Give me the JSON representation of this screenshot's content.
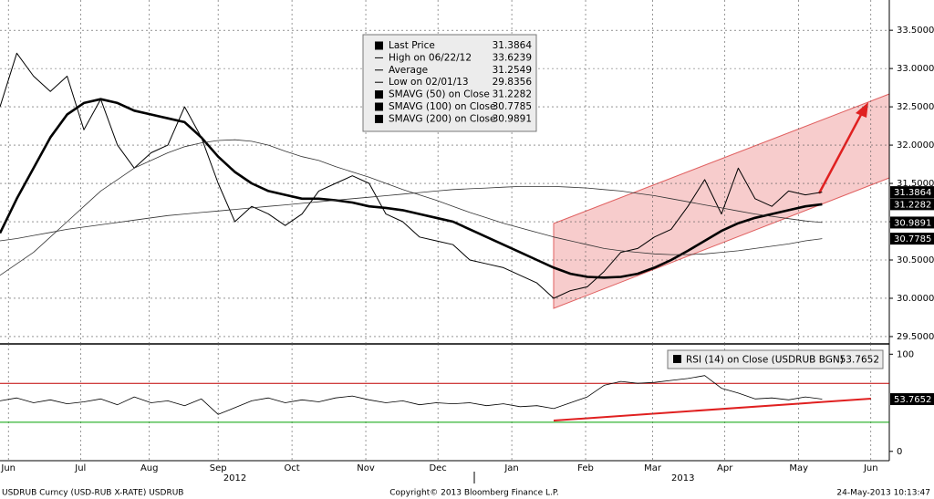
{
  "chart_data": [
    {
      "type": "line",
      "x": [
        0,
        1,
        2,
        3,
        4,
        5,
        6,
        7,
        8,
        9,
        10,
        11,
        12,
        13,
        14,
        15,
        16,
        17,
        18,
        19,
        20,
        21,
        22,
        23,
        24,
        25,
        26,
        27,
        28,
        29,
        30,
        31,
        32,
        33,
        34,
        35,
        36,
        37,
        38,
        39,
        40,
        41,
        42,
        43,
        44,
        45,
        46,
        47,
        48,
        49
      ],
      "xlim": [
        0,
        53
      ],
      "ylim": [
        29.404,
        33.895
      ],
      "yticks": [
        {
          "value": 29.5,
          "label": "29.5000"
        },
        {
          "value": 30,
          "label": "30.0000"
        },
        {
          "value": 30.5,
          "label": "30.5000"
        },
        {
          "value": 31,
          "label": "31.0000"
        },
        {
          "value": 31.5,
          "label": "31.5000"
        },
        {
          "value": 32,
          "label": "32.0000"
        },
        {
          "value": 32.5,
          "label": "32.5000"
        },
        {
          "value": 33,
          "label": "33.0000"
        },
        {
          "value": 33.5,
          "label": "33.5000"
        }
      ],
      "grid": true,
      "series": [
        {
          "name": "Last Price",
          "color": "#000000",
          "line_width": 1,
          "last_value": 31.3864,
          "values": [
            32.5,
            33.2,
            32.9,
            32.7,
            32.9,
            32.2,
            32.6,
            32.0,
            31.7,
            31.9,
            32.0,
            32.5,
            32.1,
            31.5,
            31.0,
            31.2,
            31.1,
            30.95,
            31.1,
            31.4,
            31.5,
            31.6,
            31.5,
            31.1,
            31.0,
            30.8,
            30.75,
            30.7,
            30.5,
            30.45,
            30.4,
            30.3,
            30.2,
            30.0,
            30.1,
            30.15,
            30.35,
            30.6,
            30.65,
            30.8,
            30.9,
            31.2,
            31.55,
            31.1,
            31.7,
            31.3,
            31.2,
            31.4,
            31.35,
            31.3864
          ]
        },
        {
          "name": "SMAVG (50) on Close",
          "color": "#000000",
          "line_width": 2.6,
          "last_value": 31.2282,
          "values": [
            30.85,
            31.3,
            31.7,
            32.1,
            32.4,
            32.55,
            32.6,
            32.55,
            32.45,
            32.4,
            32.35,
            32.3,
            32.1,
            31.85,
            31.65,
            31.5,
            31.4,
            31.35,
            31.3,
            31.3,
            31.28,
            31.25,
            31.2,
            31.18,
            31.15,
            31.1,
            31.05,
            31.0,
            30.9,
            30.8,
            30.7,
            30.6,
            30.5,
            30.4,
            30.32,
            30.28,
            30.27,
            30.28,
            30.32,
            30.4,
            30.5,
            30.62,
            30.75,
            30.88,
            30.98,
            31.05,
            31.1,
            31.15,
            31.2,
            31.2282
          ]
        },
        {
          "name": "SMAVG (100) on Close",
          "color": "#333333",
          "line_width": 0.8,
          "last_value": 30.7785,
          "values": [
            30.3,
            30.45,
            30.6,
            30.8,
            31.0,
            31.2,
            31.4,
            31.55,
            31.7,
            31.8,
            31.9,
            31.98,
            32.03,
            32.06,
            32.07,
            32.05,
            32.0,
            31.92,
            31.85,
            31.8,
            31.72,
            31.65,
            31.58,
            31.5,
            31.42,
            31.35,
            31.28,
            31.2,
            31.12,
            31.05,
            30.98,
            30.92,
            30.86,
            30.8,
            30.75,
            30.7,
            30.65,
            30.62,
            30.6,
            30.58,
            30.57,
            30.57,
            30.58,
            30.6,
            30.62,
            30.65,
            30.68,
            30.71,
            30.75,
            30.7785
          ]
        },
        {
          "name": "SMAVG (200) on Close",
          "color": "#333333",
          "line_width": 0.8,
          "last_value": 30.9891,
          "values": [
            30.75,
            30.78,
            30.82,
            30.86,
            30.9,
            30.93,
            30.96,
            30.99,
            31.02,
            31.05,
            31.08,
            31.1,
            31.12,
            31.14,
            31.16,
            31.18,
            31.2,
            31.22,
            31.24,
            31.26,
            31.28,
            31.3,
            31.32,
            31.34,
            31.36,
            31.38,
            31.4,
            31.42,
            31.43,
            31.44,
            31.45,
            31.46,
            31.46,
            31.46,
            31.45,
            31.44,
            31.42,
            31.4,
            31.37,
            31.34,
            31.3,
            31.26,
            31.22,
            31.18,
            31.14,
            31.1,
            31.07,
            31.04,
            31.01,
            30.9891
          ]
        }
      ],
      "legend_extra": [
        {
          "label": "High on 06/22/12",
          "value": 33.6239
        },
        {
          "label": "Average",
          "value": 31.2549
        },
        {
          "label": "Low on 02/01/13",
          "value": 29.8356
        }
      ]
    },
    {
      "type": "line",
      "x": [
        0,
        1,
        2,
        3,
        4,
        5,
        6,
        7,
        8,
        9,
        10,
        11,
        12,
        13,
        14,
        15,
        16,
        17,
        18,
        19,
        20,
        21,
        22,
        23,
        24,
        25,
        26,
        27,
        28,
        29,
        30,
        31,
        32,
        33,
        34,
        35,
        36,
        37,
        38,
        39,
        40,
        41,
        42,
        43,
        44,
        45,
        46,
        47,
        48,
        49
      ],
      "xlim": [
        0,
        53
      ],
      "ylim": [
        -9.6,
        110.6
      ],
      "yticks": [
        0,
        100
      ],
      "xticks": [
        {
          "value": 0.5,
          "label": "Jun"
        },
        {
          "value": 4.8,
          "label": "Jul"
        },
        {
          "value": 8.9,
          "label": "Aug"
        },
        {
          "value": 13.0,
          "label": "Sep"
        },
        {
          "value": 17.4,
          "label": "Oct"
        },
        {
          "value": 21.8,
          "label": "Nov"
        },
        {
          "value": 26.1,
          "label": "Dec"
        },
        {
          "value": 30.5,
          "label": "Jan"
        },
        {
          "value": 34.9,
          "label": "Feb"
        },
        {
          "value": 38.9,
          "label": "Mar"
        },
        {
          "value": 43.2,
          "label": "Apr"
        },
        {
          "value": 47.6,
          "label": "May"
        },
        {
          "value": 51.9,
          "label": "Jun"
        }
      ],
      "x_years": [
        {
          "value": 14.0,
          "label": "2012"
        },
        {
          "value": 40.7,
          "label": "2013"
        }
      ],
      "hlines": [
        {
          "value": 70,
          "color": "#c00000"
        },
        {
          "value": 30,
          "color": "#00a000"
        }
      ],
      "series": [
        {
          "name": "RSI (14) on Close (USDRUB BGN)",
          "color": "#000000",
          "line_width": 0.8,
          "last_value": 53.7652,
          "values": [
            52,
            55,
            50,
            53,
            49,
            51,
            54,
            48,
            56,
            50,
            52,
            47,
            54,
            38,
            45,
            52,
            55,
            50,
            53,
            51,
            55,
            57,
            53,
            50,
            52,
            48,
            50,
            49,
            50,
            47,
            49,
            46,
            47,
            44,
            50,
            56,
            68,
            72,
            70,
            71,
            73,
            75,
            78,
            65,
            60,
            54,
            55,
            53,
            56,
            53.7652
          ]
        }
      ]
    }
  ],
  "footer": {
    "left": "USDRUB Curncy (USD-RUB X-RATE) USDRUB",
    "center": "Copyright© 2013 Bloomberg Finance L.P.",
    "right": "24-May-2013 10:13:47"
  }
}
